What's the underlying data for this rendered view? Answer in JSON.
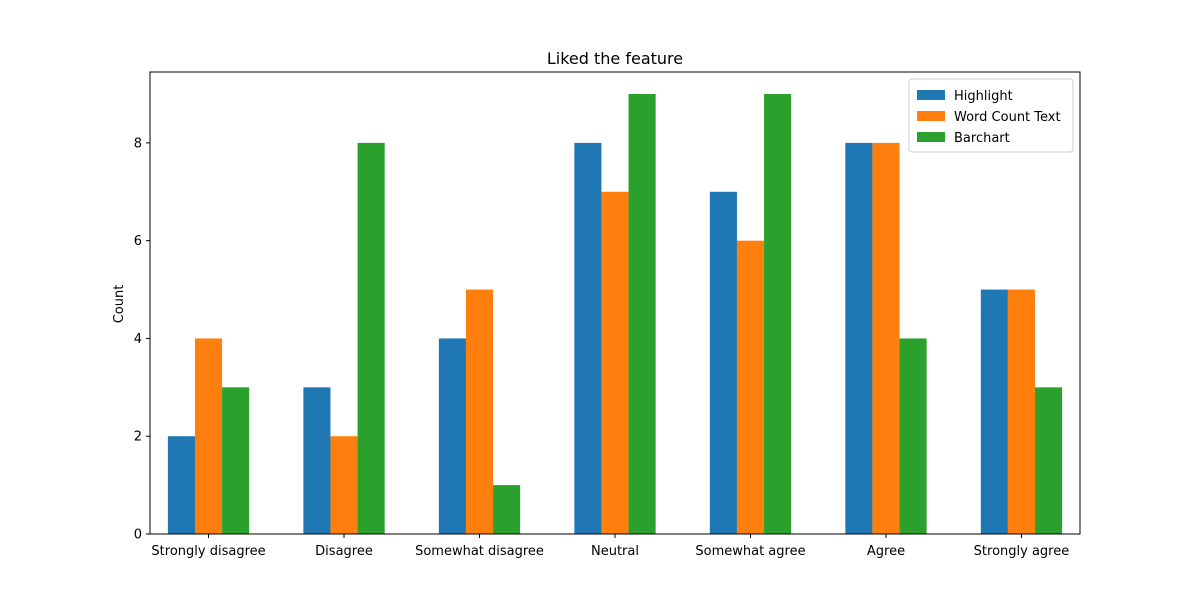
{
  "chart_data": {
    "type": "bar",
    "title": "Liked the feature",
    "xlabel": "",
    "ylabel": "Count",
    "categories": [
      "Strongly disagree",
      "Disagree",
      "Somewhat disagree",
      "Neutral",
      "Somewhat agree",
      "Agree",
      "Strongly agree"
    ],
    "series": [
      {
        "name": "Highlight",
        "color": "#1f77b4",
        "values": [
          2,
          3,
          4,
          8,
          7,
          8,
          5
        ]
      },
      {
        "name": "Word Count Text",
        "color": "#ff7f0e",
        "values": [
          4,
          2,
          5,
          7,
          6,
          8,
          5
        ]
      },
      {
        "name": "Barchart",
        "color": "#2ca02c",
        "values": [
          3,
          8,
          1,
          9,
          9,
          4,
          3
        ]
      }
    ],
    "ylim": [
      0,
      9.45
    ],
    "yticks": [
      0,
      2,
      4,
      6,
      8
    ],
    "grid": false,
    "legend_position": "top-right"
  }
}
